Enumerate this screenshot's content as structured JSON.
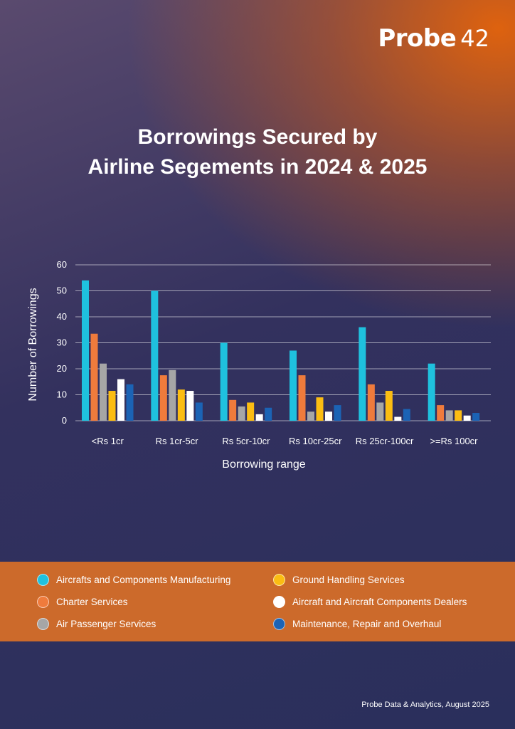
{
  "logo": {
    "brand": "Probe",
    "number": "42"
  },
  "title": {
    "line1": "Borrowings Secured by",
    "line2": "Airline Segements in 2024 & 2025"
  },
  "chart_data": {
    "type": "bar",
    "title": "Borrowings Secured by Airline Segements in 2024 & 2025",
    "xlabel": "Borrowing range",
    "ylabel": "Number of Borrowings",
    "ylim": [
      0,
      60
    ],
    "yticks": [
      0,
      10,
      20,
      30,
      40,
      50,
      60
    ],
    "grid": true,
    "categories": [
      "<Rs 1cr",
      "Rs 1cr-5cr",
      "Rs 5cr-10cr",
      "Rs 10cr-25cr",
      "Rs 25cr-100cr",
      ">=Rs 100cr"
    ],
    "series": [
      {
        "name": "Aircrafts and Components Manufacturing",
        "color": "#1fc1de",
        "values": [
          54,
          50,
          30,
          27,
          36,
          22
        ]
      },
      {
        "name": "Charter Services",
        "color": "#ef7b3c",
        "values": [
          33.5,
          17.5,
          8,
          17.5,
          14,
          6
        ]
      },
      {
        "name": "Air Passenger Services",
        "color": "#a6a6a6",
        "values": [
          22,
          19.5,
          5.5,
          3.5,
          7,
          4
        ]
      },
      {
        "name": "Ground Handling Services",
        "color": "#fbbd12",
        "values": [
          11.5,
          12,
          7,
          9,
          11.5,
          4
        ]
      },
      {
        "name": "Aircraft and Aircraft Components Dealers",
        "color": "#ffffff",
        "values": [
          16,
          11.5,
          2.5,
          3.5,
          1.5,
          2
        ]
      },
      {
        "name": "Maintenance, Repair and Overhaul",
        "color": "#1b63b5",
        "values": [
          14,
          7,
          5,
          6,
          4.5,
          3
        ]
      }
    ]
  },
  "footer": "Probe Data & Analytics, August 2025"
}
